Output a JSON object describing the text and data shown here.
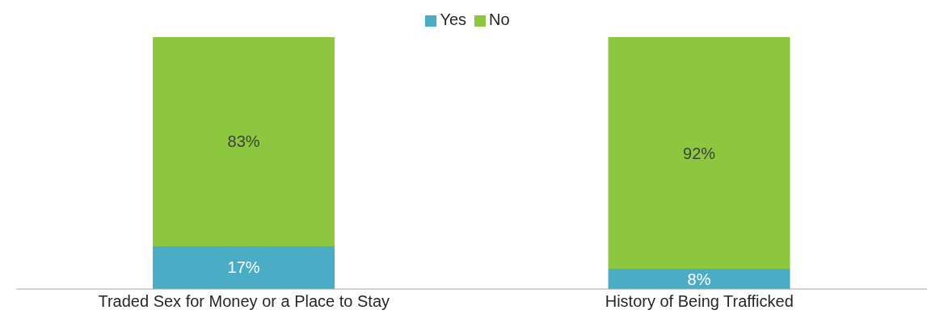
{
  "chart_data": {
    "type": "bar",
    "stacked": true,
    "categories": [
      "Traded Sex for Money or a Place to Stay",
      "History of Being Trafficked"
    ],
    "series": [
      {
        "name": "Yes",
        "color": "#4bacc6",
        "values": [
          17,
          8
        ],
        "value_labels": [
          "17%",
          "8%"
        ]
      },
      {
        "name": "No",
        "color": "#8dc63f",
        "values": [
          83,
          92
        ],
        "value_labels": [
          "83%",
          "92%"
        ]
      }
    ],
    "legend": "top",
    "grid": false
  }
}
